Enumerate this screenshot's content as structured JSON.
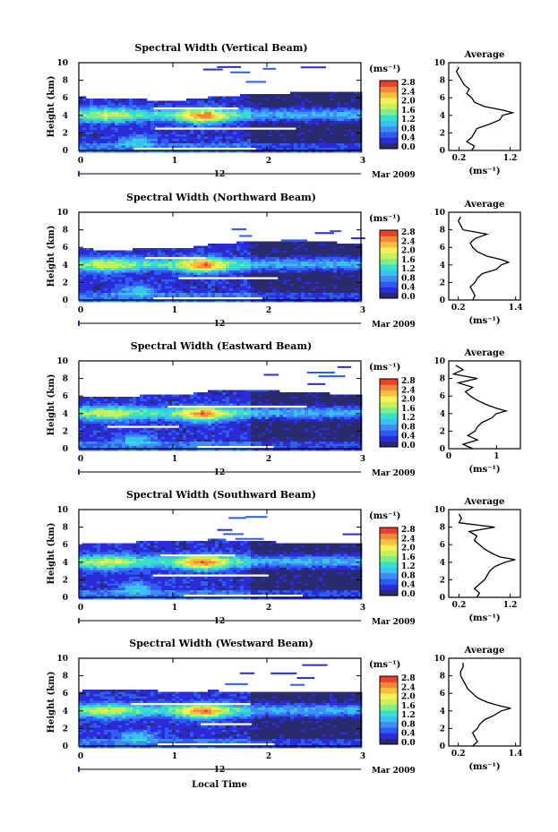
{
  "colorbar": {
    "unit": "(ms⁻¹)",
    "tick_labels": [
      "0.0",
      "0.4",
      "0.8",
      "1.2",
      "1.6",
      "2.0",
      "2.4",
      "2.8"
    ],
    "colors": [
      "#2a2a6e",
      "#2b2bd8",
      "#2f5cf0",
      "#3f8cf5",
      "#39c2f0",
      "#37e0c8",
      "#7fee8a",
      "#c8f05a",
      "#f7f05a",
      "#f5c040",
      "#f2883a",
      "#e8402a"
    ]
  },
  "date_label": "Mar 2009",
  "x_axis_label": "Local Time",
  "y_axis_label": "Height (km)",
  "day_label": "12",
  "avg_title": "Average",
  "avg_xlabel": "(ms⁻¹)",
  "chart_data": [
    {
      "type": "heatmap",
      "title": "Spectral Width (Vertical Beam)",
      "xlabel": "",
      "ylabel": "Height (km)",
      "x_ticks": [
        "0",
        "1",
        "2",
        "3"
      ],
      "y_ticks": [
        "0",
        "2",
        "4",
        "6",
        "8",
        "10"
      ],
      "xlim": [
        0,
        3
      ],
      "ylim": [
        0,
        10
      ],
      "clim": [
        0.0,
        2.8
      ],
      "profile": {
        "title": "Average",
        "x_ticks": [
          "0.2",
          "1.2"
        ],
        "xlim": [
          0,
          1.4
        ],
        "height": [
          0,
          0.5,
          1,
          1.5,
          2,
          2.5,
          3,
          3.5,
          4,
          4.3,
          4.6,
          5,
          5.5,
          6,
          6.5,
          7,
          7.5,
          8,
          8.5,
          9,
          9.5
        ],
        "width": [
          0.45,
          0.5,
          0.35,
          0.45,
          0.5,
          0.55,
          0.8,
          1.0,
          1.05,
          1.25,
          1.05,
          0.7,
          0.5,
          0.45,
          0.35,
          0.4,
          0.3,
          0.25,
          0.2,
          0.15,
          0.2
        ]
      }
    },
    {
      "type": "heatmap",
      "title": "Spectral Width (Northward Beam)",
      "xlabel": "",
      "ylabel": "Height (km)",
      "x_ticks": [
        "0",
        "1",
        "2",
        "3"
      ],
      "y_ticks": [
        "0",
        "2",
        "4",
        "6",
        "8",
        "10"
      ],
      "xlim": [
        0,
        3
      ],
      "ylim": [
        0,
        10
      ],
      "clim": [
        0.0,
        2.8
      ],
      "profile": {
        "title": "Average",
        "x_ticks": [
          "0.2",
          "1.4"
        ],
        "xlim": [
          0,
          1.5
        ],
        "height": [
          0,
          0.5,
          1,
          1.5,
          2,
          2.5,
          3,
          3.5,
          4,
          4.3,
          4.6,
          5,
          5.5,
          6,
          6.5,
          7,
          7.5,
          8,
          8.5,
          9,
          9.5
        ],
        "width": [
          0.5,
          0.55,
          0.5,
          0.45,
          0.55,
          0.6,
          0.7,
          1.0,
          1.1,
          1.25,
          1.1,
          0.8,
          0.6,
          0.5,
          0.45,
          0.55,
          0.8,
          0.3,
          0.25,
          0.2,
          0.25
        ]
      }
    },
    {
      "type": "heatmap",
      "title": "Spectral Width (Eastward Beam)",
      "xlabel": "",
      "ylabel": "Height (km)",
      "x_ticks": [
        "0",
        "1",
        "2",
        "3"
      ],
      "y_ticks": [
        "0",
        "2",
        "4",
        "6",
        "8",
        "10"
      ],
      "xlim": [
        0,
        3
      ],
      "ylim": [
        0,
        10
      ],
      "clim": [
        0.0,
        2.8
      ],
      "profile": {
        "title": "Average",
        "x_ticks": [
          "0",
          "1"
        ],
        "xlim": [
          0,
          1.5
        ],
        "height": [
          0,
          0.5,
          1,
          1.5,
          2,
          2.5,
          3,
          3.5,
          4,
          4.3,
          4.6,
          5,
          5.5,
          6,
          6.5,
          7,
          7.5,
          8,
          8.5,
          9,
          9.5
        ],
        "width": [
          0.5,
          0.3,
          0.6,
          0.4,
          0.55,
          0.6,
          0.7,
          0.9,
          1.0,
          1.2,
          1.0,
          0.8,
          0.6,
          0.45,
          0.35,
          0.5,
          0.2,
          0.6,
          0.1,
          0.3,
          0.15
        ]
      }
    },
    {
      "type": "heatmap",
      "title": "Spectral Width (Southward Beam)",
      "xlabel": "",
      "ylabel": "Height (km)",
      "x_ticks": [
        "0",
        "1",
        "2",
        "3"
      ],
      "y_ticks": [
        "0",
        "2",
        "4",
        "6",
        "8",
        "10"
      ],
      "xlim": [
        0,
        3
      ],
      "ylim": [
        0,
        10
      ],
      "clim": [
        0.0,
        2.8
      ],
      "profile": {
        "title": "Average",
        "x_ticks": [
          "0.2",
          "1.2"
        ],
        "xlim": [
          0,
          1.4
        ],
        "height": [
          0,
          0.5,
          1,
          1.5,
          2,
          2.5,
          3,
          3.5,
          4,
          4.3,
          4.6,
          5,
          5.5,
          6,
          6.5,
          7,
          7.5,
          8,
          8.5,
          9,
          9.5
        ],
        "width": [
          0.55,
          0.6,
          0.5,
          0.6,
          0.7,
          0.75,
          0.8,
          0.9,
          1.1,
          1.3,
          1.0,
          0.85,
          0.7,
          0.6,
          0.5,
          0.55,
          0.4,
          0.9,
          0.2,
          0.25,
          0.2
        ]
      }
    },
    {
      "type": "heatmap",
      "title": "Spectral Width (Westward Beam)",
      "xlabel": "Local Time",
      "ylabel": "Height (km)",
      "x_ticks": [
        "0",
        "1",
        "2",
        "3"
      ],
      "y_ticks": [
        "0",
        "2",
        "4",
        "6",
        "8",
        "10"
      ],
      "xlim": [
        0,
        3
      ],
      "ylim": [
        0,
        10
      ],
      "clim": [
        0.0,
        2.8
      ],
      "profile": {
        "title": "Average",
        "x_ticks": [
          "0.2",
          "1.4"
        ],
        "xlim": [
          0,
          1.5
        ],
        "height": [
          0,
          0.5,
          1,
          1.5,
          2,
          2.5,
          3,
          3.5,
          4,
          4.3,
          4.6,
          5,
          5.5,
          6,
          6.5,
          7,
          7.5,
          8,
          8.5,
          9,
          9.5
        ],
        "width": [
          0.5,
          0.6,
          0.55,
          0.5,
          0.6,
          0.65,
          0.75,
          0.95,
          1.1,
          1.3,
          1.05,
          0.8,
          0.6,
          0.5,
          0.4,
          0.35,
          0.3,
          0.25,
          0.25,
          0.3,
          0.3
        ]
      }
    }
  ]
}
